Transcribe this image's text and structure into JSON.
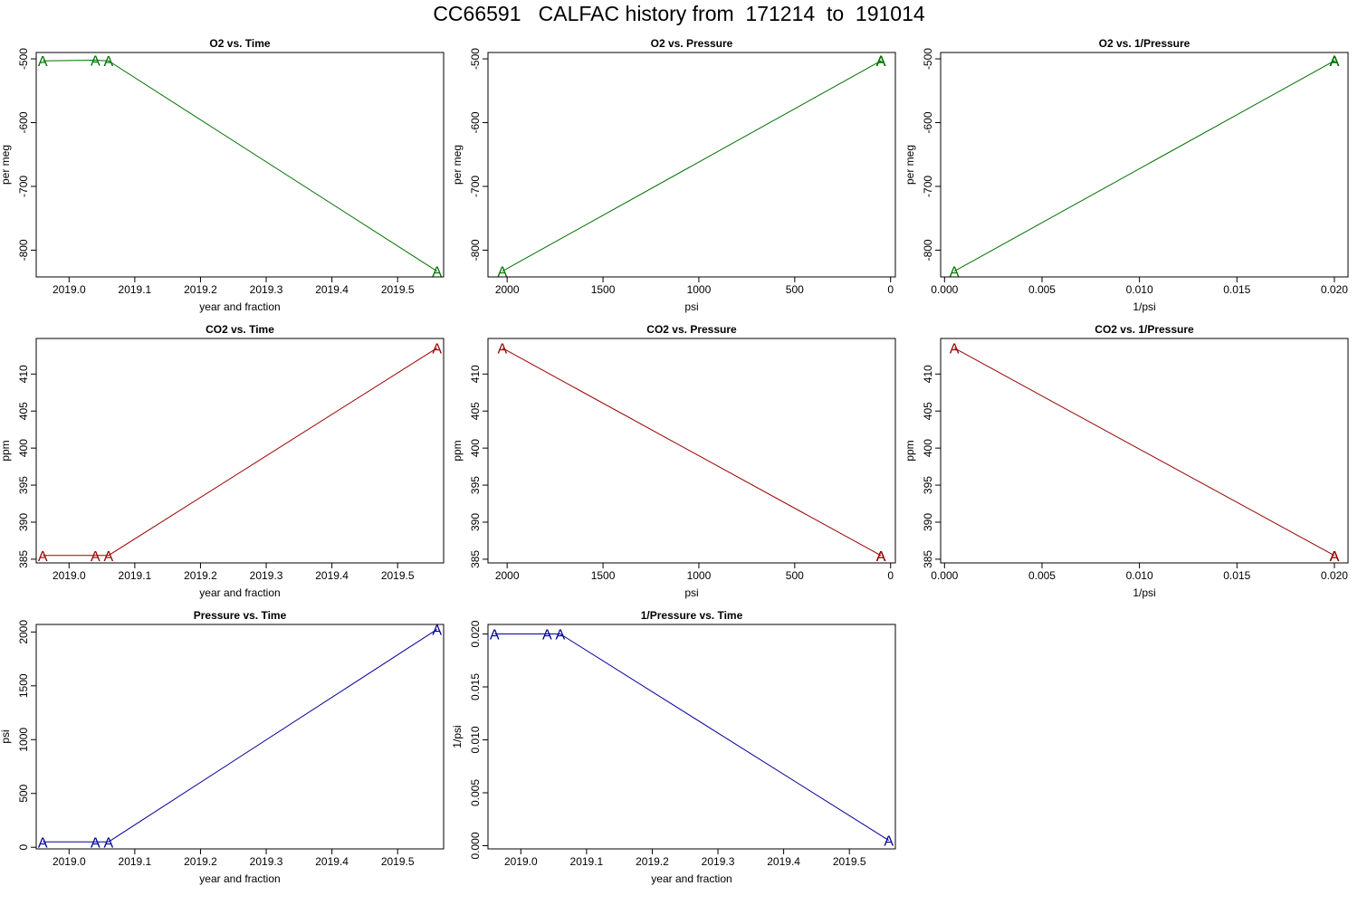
{
  "page": {
    "title": "CC66591   CALFAC history from  171214  to  191014"
  },
  "colors": {
    "o2": "#007000",
    "co2": "#990000",
    "pressure": "#000099"
  },
  "chart_data": [
    {
      "type": "line",
      "title": "O2 vs. Time",
      "xlabel": "year and fraction",
      "ylabel": "per meg",
      "xlim": [
        2018.95,
        2019.57
      ],
      "ylim": [
        -842,
        -490
      ],
      "xticks": [
        2019.0,
        2019.1,
        2019.2,
        2019.3,
        2019.4,
        2019.5
      ],
      "xtick_labels": [
        "2019.0",
        "2019.1",
        "2019.2",
        "2019.3",
        "2019.4",
        "2019.5"
      ],
      "yticks": [
        -500,
        -600,
        -700,
        -800
      ],
      "ytick_labels": [
        "-500",
        "-600",
        "-700",
        "-800"
      ],
      "color_key": "o2",
      "marker": "A",
      "x": [
        2018.96,
        2019.04,
        2019.06,
        2019.56
      ],
      "y": [
        -503,
        -502,
        -503,
        -833
      ]
    },
    {
      "type": "line",
      "title": "O2 vs. Pressure",
      "xlabel": "psi",
      "ylabel": "per meg",
      "xlim": [
        2100,
        -25
      ],
      "ylim": [
        -842,
        -490
      ],
      "xticks": [
        2000,
        1500,
        1000,
        500,
        0
      ],
      "xtick_labels": [
        "2000",
        "1500",
        "1000",
        "500",
        "0"
      ],
      "yticks": [
        -500,
        -600,
        -700,
        -800
      ],
      "ytick_labels": [
        "-500",
        "-600",
        "-700",
        "-800"
      ],
      "color_key": "o2",
      "marker": "A",
      "x": [
        2025,
        50,
        50,
        50
      ],
      "y": [
        -833,
        -503,
        -502,
        -503
      ]
    },
    {
      "type": "line",
      "title": "O2 vs. 1/Pressure",
      "xlabel": "1/psi",
      "ylabel": "per meg",
      "xlim": [
        -0.0002,
        0.0207
      ],
      "ylim": [
        -842,
        -490
      ],
      "xticks": [
        0.0,
        0.005,
        0.01,
        0.015,
        0.02
      ],
      "xtick_labels": [
        "0.000",
        "0.005",
        "0.010",
        "0.015",
        "0.020"
      ],
      "yticks": [
        -500,
        -600,
        -700,
        -800
      ],
      "ytick_labels": [
        "-500",
        "-600",
        "-700",
        "-800"
      ],
      "color_key": "o2",
      "marker": "A",
      "x": [
        0.0005,
        0.02,
        0.02,
        0.02
      ],
      "y": [
        -833,
        -503,
        -502,
        -503
      ]
    },
    {
      "type": "line",
      "title": "CO2 vs. Time",
      "xlabel": "year and fraction",
      "ylabel": "ppm",
      "xlim": [
        2018.95,
        2019.57
      ],
      "ylim": [
        384.5,
        414.8
      ],
      "xticks": [
        2019.0,
        2019.1,
        2019.2,
        2019.3,
        2019.4,
        2019.5
      ],
      "xtick_labels": [
        "2019.0",
        "2019.1",
        "2019.2",
        "2019.3",
        "2019.4",
        "2019.5"
      ],
      "yticks": [
        385,
        390,
        395,
        400,
        405,
        410
      ],
      "ytick_labels": [
        "385",
        "390",
        "395",
        "400",
        "405",
        "410"
      ],
      "color_key": "co2",
      "marker": "A",
      "x": [
        2018.96,
        2019.04,
        2019.06,
        2019.56
      ],
      "y": [
        385.5,
        385.5,
        385.5,
        413.5
      ]
    },
    {
      "type": "line",
      "title": "CO2 vs. Pressure",
      "xlabel": "psi",
      "ylabel": "ppm",
      "xlim": [
        2100,
        -25
      ],
      "ylim": [
        384.5,
        414.8
      ],
      "xticks": [
        2000,
        1500,
        1000,
        500,
        0
      ],
      "xtick_labels": [
        "2000",
        "1500",
        "1000",
        "500",
        "0"
      ],
      "yticks": [
        385,
        390,
        395,
        400,
        405,
        410
      ],
      "ytick_labels": [
        "385",
        "390",
        "395",
        "400",
        "405",
        "410"
      ],
      "color_key": "co2",
      "marker": "A",
      "x": [
        2025,
        50,
        50,
        50
      ],
      "y": [
        413.5,
        385.5,
        385.5,
        385.5
      ]
    },
    {
      "type": "line",
      "title": "CO2 vs. 1/Pressure",
      "xlabel": "1/psi",
      "ylabel": "ppm",
      "xlim": [
        -0.0002,
        0.0207
      ],
      "ylim": [
        384.5,
        414.8
      ],
      "xticks": [
        0.0,
        0.005,
        0.01,
        0.015,
        0.02
      ],
      "xtick_labels": [
        "0.000",
        "0.005",
        "0.010",
        "0.015",
        "0.020"
      ],
      "yticks": [
        385,
        390,
        395,
        400,
        405,
        410
      ],
      "ytick_labels": [
        "385",
        "390",
        "395",
        "400",
        "405",
        "410"
      ],
      "color_key": "co2",
      "marker": "A",
      "x": [
        0.0005,
        0.02,
        0.02,
        0.02
      ],
      "y": [
        413.5,
        385.5,
        385.5,
        385.5
      ]
    },
    {
      "type": "line",
      "title": "Pressure vs. Time",
      "xlabel": "year and fraction",
      "ylabel": "psi",
      "xlim": [
        2018.95,
        2019.57
      ],
      "ylim": [
        -15,
        2070
      ],
      "xticks": [
        2019.0,
        2019.1,
        2019.2,
        2019.3,
        2019.4,
        2019.5
      ],
      "xtick_labels": [
        "2019.0",
        "2019.1",
        "2019.2",
        "2019.3",
        "2019.4",
        "2019.5"
      ],
      "yticks": [
        0,
        500,
        1000,
        1500,
        2000
      ],
      "ytick_labels": [
        "0",
        "500",
        "1000",
        "1500",
        "2000"
      ],
      "color_key": "pressure",
      "marker": "A",
      "x": [
        2018.96,
        2019.04,
        2019.06,
        2019.56
      ],
      "y": [
        50,
        50,
        50,
        2025
      ]
    },
    {
      "type": "line",
      "title": "1/Pressure vs. Time",
      "xlabel": "year and fraction",
      "ylabel": "1/psi",
      "xlim": [
        2018.95,
        2019.57
      ],
      "ylim": [
        -0.0003,
        0.0209
      ],
      "xticks": [
        2019.0,
        2019.1,
        2019.2,
        2019.3,
        2019.4,
        2019.5
      ],
      "xtick_labels": [
        "2019.0",
        "2019.1",
        "2019.2",
        "2019.3",
        "2019.4",
        "2019.5"
      ],
      "yticks": [
        0.0,
        0.005,
        0.01,
        0.015,
        0.02
      ],
      "ytick_labels": [
        "0.000",
        "0.005",
        "0.010",
        "0.015",
        "0.020"
      ],
      "color_key": "pressure",
      "marker": "A",
      "x": [
        2018.96,
        2019.04,
        2019.06,
        2019.56
      ],
      "y": [
        0.02,
        0.02,
        0.02,
        0.0005
      ]
    }
  ]
}
